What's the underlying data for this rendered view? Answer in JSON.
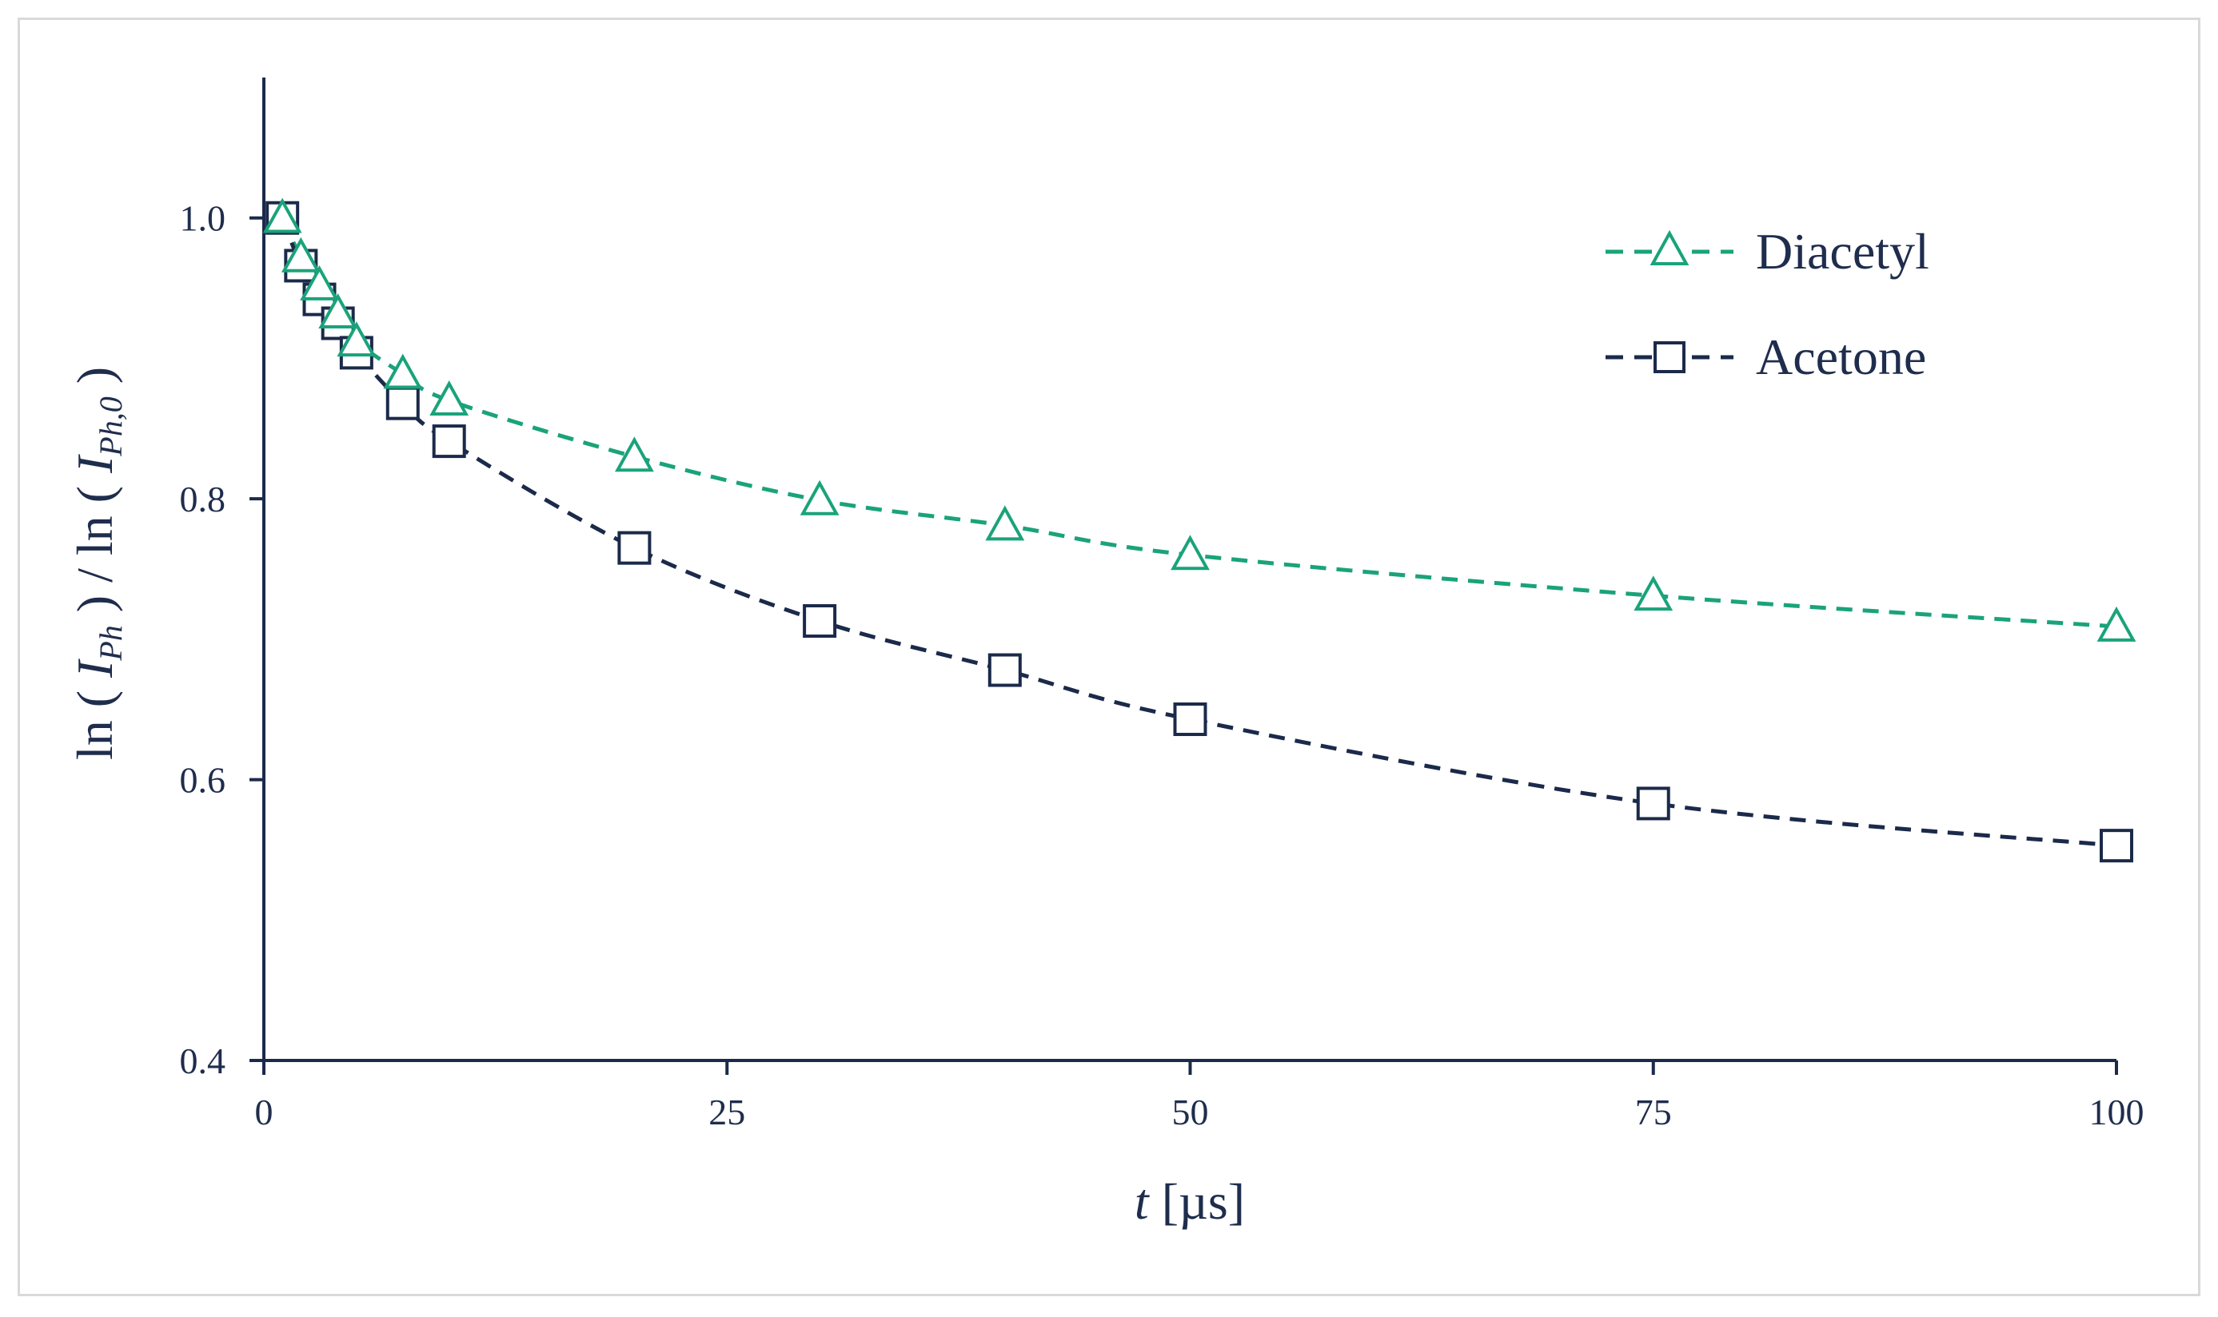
{
  "chart_data": {
    "type": "line",
    "title": "",
    "xlabel": {
      "italic": "t",
      "rest": " [µs]"
    },
    "ylabel": {
      "ln1": "ln ( ",
      "I1": "I",
      "sub1": "Ph",
      "close1": " ) / ln ( ",
      "I2": "I",
      "sub2": "Ph,0",
      "close2": " )"
    },
    "xlim": [
      0,
      100
    ],
    "ylim": [
      0.4,
      1.1
    ],
    "xticks": [
      0,
      25,
      50,
      75,
      100
    ],
    "xtick_labels": [
      "0",
      "25",
      "50",
      "75",
      "100"
    ],
    "yticks": [
      0.4,
      0.6,
      0.8,
      1.0
    ],
    "ytick_labels": [
      "0.4",
      "0.6",
      "0.8",
      "1.0"
    ],
    "grid": false,
    "legend_position": "top-right",
    "series": [
      {
        "name": "Diacetyl",
        "marker": "triangle",
        "color": "#1aa37a",
        "x": [
          1,
          2,
          3,
          4,
          5,
          7.5,
          10,
          20,
          30,
          40,
          50,
          75,
          100
        ],
        "y": [
          1.0,
          0.972,
          0.952,
          0.932,
          0.912,
          0.889,
          0.87,
          0.83,
          0.799,
          0.781,
          0.76,
          0.731,
          0.709
        ]
      },
      {
        "name": "Acetone",
        "marker": "square",
        "color": "#1b2a4a",
        "x": [
          1,
          2,
          3,
          4,
          5,
          7.5,
          10,
          20,
          30,
          40,
          50,
          75,
          100
        ],
        "y": [
          1.0,
          0.966,
          0.942,
          0.925,
          0.904,
          0.868,
          0.841,
          0.765,
          0.713,
          0.678,
          0.643,
          0.583,
          0.553
        ]
      }
    ]
  }
}
